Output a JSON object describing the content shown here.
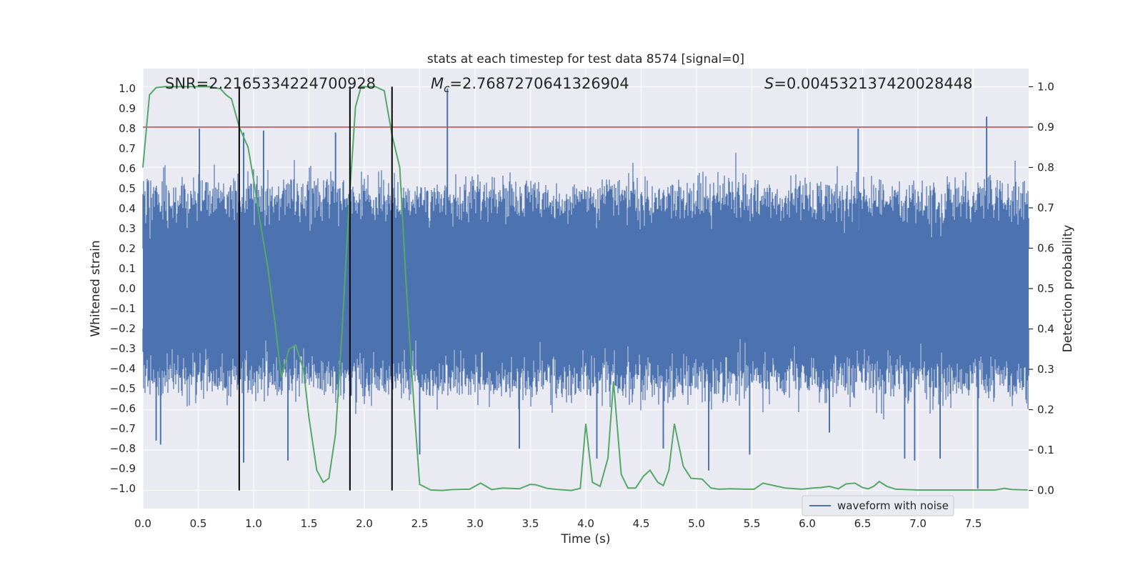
{
  "chart_data": {
    "type": "line",
    "title": "stats at each timestep for test data 8574 [signal=0]",
    "xlabel": "Time (s)",
    "ylabel": "Whitened strain",
    "y2label": "Detection probability",
    "xlim": [
      0,
      8
    ],
    "ylim": [
      -1.1,
      1.1
    ],
    "y2lim": [
      -0.045,
      1.045
    ],
    "x_ticks": [
      0.0,
      0.5,
      1.0,
      1.5,
      2.0,
      2.5,
      3.0,
      3.5,
      4.0,
      4.5,
      5.0,
      5.5,
      6.0,
      6.5,
      7.0,
      7.5
    ],
    "x_tick_labels": [
      "0.0",
      "0.5",
      "1.0",
      "1.5",
      "2.0",
      "2.5",
      "3.0",
      "3.5",
      "4.0",
      "4.5",
      "5.0",
      "5.5",
      "6.0",
      "6.5",
      "7.0",
      "7.5"
    ],
    "y_ticks": [
      1.0,
      0.9,
      0.8,
      0.7,
      0.6,
      0.5,
      0.4,
      0.3,
      0.2,
      0.1,
      0.0,
      -0.1,
      -0.2,
      -0.3,
      -0.4,
      -0.5,
      -0.6,
      -0.7,
      -0.8,
      -0.9,
      -1.0
    ],
    "y_tick_labels": [
      "1.0",
      "0.9",
      "0.8",
      "0.7",
      "0.6",
      "0.5",
      "0.4",
      "0.3",
      "0.2",
      "0.1",
      "0.0",
      "−0.1",
      "−0.2",
      "−0.3",
      "−0.4",
      "−0.5",
      "−0.6",
      "−0.7",
      "−0.8",
      "−0.9",
      "−1.0"
    ],
    "y2_ticks": [
      1.0,
      0.9,
      0.8,
      0.7,
      0.6,
      0.5,
      0.4,
      0.3,
      0.2,
      0.1,
      0.0
    ],
    "y2_tick_labels": [
      "1.0",
      "0.9",
      "0.8",
      "0.7",
      "0.6",
      "0.5",
      "0.4",
      "0.3",
      "0.2",
      "0.1",
      "0.0"
    ],
    "grid": true,
    "legend": {
      "placement": "lower-right",
      "entries": [
        "waveform with noise"
      ]
    },
    "annotations": {
      "snr": "SNR=2.2165334224700928",
      "mc_prefix": "M",
      "mc_sub": "c",
      "mc_value": "=2.7687270641326904",
      "s_prefix": "S",
      "s_value": "=0.004532137420028448"
    },
    "threshold": {
      "axis": "y2",
      "value": 0.9,
      "color": "#c44e52"
    },
    "vlines": {
      "x": [
        0.87,
        1.87,
        2.25
      ],
      "color": "#000000"
    },
    "waveform": {
      "name": "waveform with noise",
      "color": "#4c72b0",
      "core_amplitude": 0.2,
      "typical_extent": 0.45,
      "spikes": [
        {
          "x": 0.51,
          "y": 0.8
        },
        {
          "x": 0.91,
          "y": 0.78
        },
        {
          "x": 1.09,
          "y": 0.79
        },
        {
          "x": 1.74,
          "y": 0.78
        },
        {
          "x": 2.75,
          "y": 1.0
        },
        {
          "x": 6.46,
          "y": 0.8
        },
        {
          "x": 7.62,
          "y": 0.86
        },
        {
          "x": 7.54,
          "y": -1.0
        },
        {
          "x": 0.91,
          "y": -0.87
        },
        {
          "x": 1.31,
          "y": -0.86
        },
        {
          "x": 5.11,
          "y": -0.91
        },
        {
          "x": 2.5,
          "y": -0.83
        },
        {
          "x": 0.12,
          "y": -0.76
        },
        {
          "x": 0.16,
          "y": -0.78
        },
        {
          "x": 4.1,
          "y": -0.85
        },
        {
          "x": 6.88,
          "y": -0.85
        },
        {
          "x": 6.97,
          "y": -0.86
        },
        {
          "x": 3.4,
          "y": -0.8
        },
        {
          "x": 4.7,
          "y": -0.8
        },
        {
          "x": 5.48,
          "y": -0.83
        },
        {
          "x": 6.2,
          "y": -0.72
        },
        {
          "x": 7.2,
          "y": -0.85
        }
      ]
    },
    "probability": {
      "color": "#55a868",
      "axis": "y2",
      "x": [
        0.0,
        0.06,
        0.12,
        0.2,
        0.3,
        0.4,
        0.5,
        0.6,
        0.7,
        0.75,
        0.8,
        0.87,
        0.95,
        1.0,
        1.05,
        1.13,
        1.2,
        1.25,
        1.32,
        1.38,
        1.45,
        1.5,
        1.57,
        1.63,
        1.68,
        1.74,
        1.8,
        1.86,
        1.92,
        1.97,
        2.02,
        2.1,
        2.18,
        2.25,
        2.32,
        2.38,
        2.45,
        2.5,
        2.6,
        2.7,
        2.8,
        2.95,
        3.05,
        3.15,
        3.25,
        3.4,
        3.5,
        3.55,
        3.65,
        3.75,
        3.87,
        3.95,
        4.0,
        4.06,
        4.13,
        4.2,
        4.25,
        4.32,
        4.38,
        4.45,
        4.52,
        4.58,
        4.65,
        4.7,
        4.75,
        4.8,
        4.88,
        4.95,
        5.05,
        5.13,
        5.2,
        5.3,
        5.45,
        5.52,
        5.6,
        5.8,
        5.95,
        6.05,
        6.12,
        6.2,
        6.28,
        6.35,
        6.43,
        6.5,
        6.55,
        6.6,
        6.65,
        6.72,
        6.8,
        7.0,
        7.2,
        7.4,
        7.6,
        7.7,
        7.78,
        7.85,
        7.99
      ],
      "values": [
        0.8,
        0.98,
        0.998,
        1.0,
        1.0,
        1.0,
        1.0,
        1.0,
        0.995,
        0.98,
        0.97,
        0.9,
        0.85,
        0.77,
        0.68,
        0.55,
        0.4,
        0.28,
        0.35,
        0.36,
        0.3,
        0.18,
        0.05,
        0.02,
        0.03,
        0.14,
        0.4,
        0.7,
        0.95,
        1.0,
        1.0,
        1.0,
        0.99,
        0.88,
        0.8,
        0.5,
        0.2,
        0.015,
        0.001,
        0.0,
        0.002,
        0.003,
        0.018,
        0.002,
        0.006,
        0.004,
        0.015,
        0.014,
        0.005,
        0.002,
        0.0,
        0.005,
        0.165,
        0.02,
        0.01,
        0.08,
        0.27,
        0.04,
        0.006,
        0.006,
        0.035,
        0.05,
        0.02,
        0.012,
        0.05,
        0.165,
        0.06,
        0.03,
        0.028,
        0.006,
        0.003,
        0.004,
        0.003,
        0.003,
        0.018,
        0.006,
        0.003,
        0.006,
        0.007,
        0.01,
        0.004,
        0.016,
        0.018,
        0.007,
        0.004,
        0.01,
        0.022,
        0.01,
        0.003,
        0.001,
        0.001,
        0.001,
        0.001,
        0.001,
        0.005,
        0.002,
        0.001
      ]
    }
  }
}
